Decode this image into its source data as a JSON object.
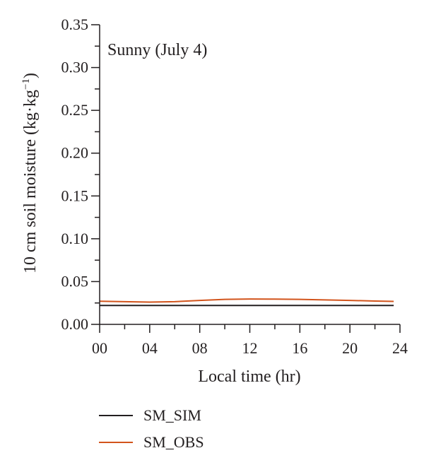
{
  "chart_data": {
    "type": "line",
    "title": "",
    "annotation": "Sunny (July 4)",
    "xlabel": "Local time (hr)",
    "ylabel": "10 cm soil moisture (kg·kg",
    "ylabel_sup": "−1",
    "ylabel_close": ")",
    "xlim": [
      0,
      24
    ],
    "ylim": [
      0,
      0.35
    ],
    "x_ticks": [
      0,
      4,
      8,
      12,
      16,
      20,
      24
    ],
    "x_tick_labels": [
      "00",
      "04",
      "08",
      "12",
      "16",
      "20",
      "24"
    ],
    "y_ticks": [
      0,
      0.05,
      0.1,
      0.15,
      0.2,
      0.25,
      0.3,
      0.35
    ],
    "y_tick_labels": [
      "0.00",
      "0.05",
      "0.10",
      "0.15",
      "0.20",
      "0.25",
      "0.30",
      "0.35"
    ],
    "grid": false,
    "legend_position": "bottom-left",
    "series": [
      {
        "name": "SM_SIM",
        "color": "#231f20",
        "x": [
          0,
          2,
          4,
          6,
          8,
          10,
          12,
          14,
          16,
          18,
          20,
          22,
          23.5
        ],
        "y": [
          0.022,
          0.022,
          0.022,
          0.022,
          0.022,
          0.022,
          0.022,
          0.022,
          0.022,
          0.022,
          0.022,
          0.022,
          0.022
        ]
      },
      {
        "name": "SM_OBS",
        "color": "#d2541c",
        "x": [
          0,
          2,
          4,
          6,
          8,
          10,
          12,
          14,
          16,
          18,
          20,
          22,
          23.5
        ],
        "y": [
          0.027,
          0.0265,
          0.026,
          0.0265,
          0.028,
          0.0292,
          0.0296,
          0.0295,
          0.0292,
          0.0286,
          0.028,
          0.0272,
          0.0268
        ]
      }
    ]
  }
}
